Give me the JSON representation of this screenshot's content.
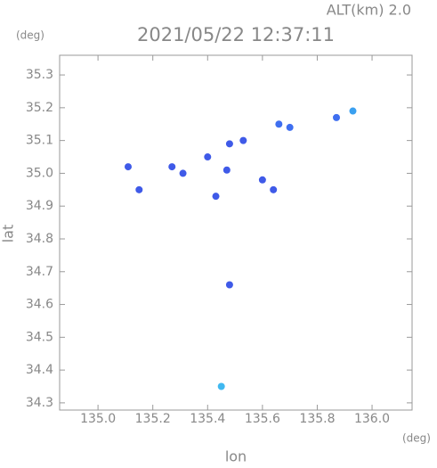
{
  "chart_data": {
    "type": "scatter",
    "title": "2021/05/22 12:37:11",
    "subtitle": "ALT(km) 2.0",
    "x_label": "lon",
    "y_label": "lat",
    "x_unit": "(deg)",
    "y_unit": "(deg)",
    "x": [
      135.93,
      135.87,
      135.66,
      135.7,
      135.53,
      135.48,
      135.4,
      135.47,
      135.11,
      135.27,
      135.31,
      135.6,
      135.43,
      135.15,
      135.48,
      135.45,
      135.64
    ],
    "values": [
      35.19,
      35.17,
      35.15,
      35.14,
      35.1,
      35.09,
      35.05,
      35.01,
      35.02,
      35.02,
      35.0,
      34.98,
      34.93,
      34.95,
      34.66,
      34.35,
      34.95
    ],
    "colors": [
      "#3aa0f0",
      "#3f6ff0",
      "#3f6ff0",
      "#3f6ff0",
      "#3f5ae8",
      "#3f5ae8",
      "#3f5ae8",
      "#3f5ae8",
      "#3f5ae8",
      "#3f5ae8",
      "#3f5ae8",
      "#3f5ae8",
      "#3f5ae8",
      "#3f5ae8",
      "#3f5ae8",
      "#40b8f0",
      "#3f5ae8"
    ],
    "xlim": [
      134.86,
      136.146
    ],
    "ylim": [
      34.278,
      35.36
    ],
    "xticks": [
      {
        "value": 135.0,
        "label": "135.0"
      },
      135.2,
      135.4,
      135.6,
      135.8,
      {
        "value": 136.0,
        "label": "136.0"
      }
    ],
    "yticks": [
      34.3,
      34.4,
      34.5,
      34.6,
      34.7,
      34.8,
      34.9,
      {
        "value": 35.0,
        "label": "35.0"
      },
      35.1,
      35.2,
      35.3
    ]
  }
}
